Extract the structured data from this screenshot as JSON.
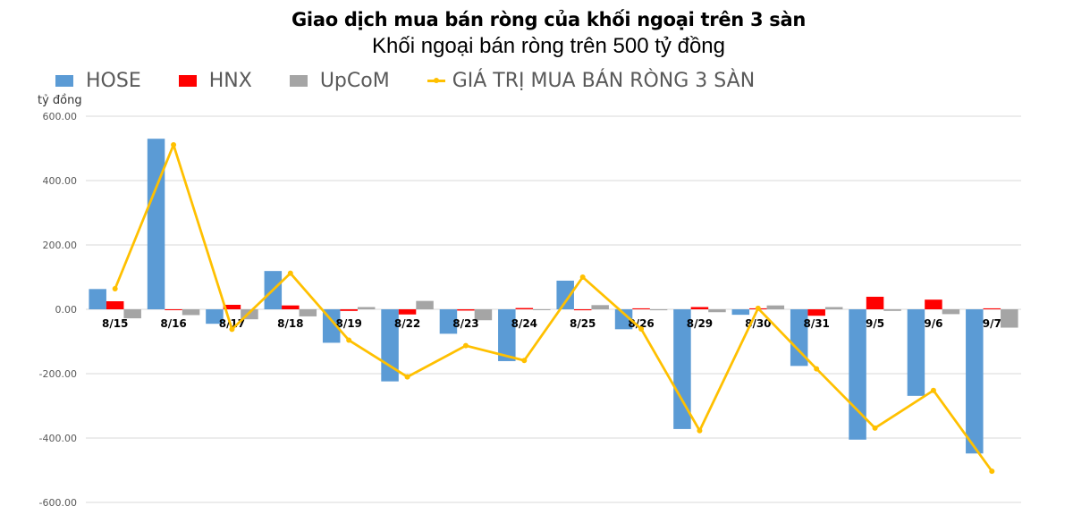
{
  "title": "Giao dịch mua bán ròng của khối ngoại trên 3 sàn",
  "subtitle": "Khối ngoại bán ròng trên 500 tỷ đồng",
  "y_unit": "tỷ đồng",
  "legend": [
    {
      "name": "HOSE",
      "type": "bar",
      "color": "#5B9BD5"
    },
    {
      "name": "HNX",
      "type": "bar",
      "color": "#FF0000"
    },
    {
      "name": "UpCoM",
      "type": "bar",
      "color": "#A5A5A5"
    },
    {
      "name": "GIÁ TRỊ MUA BÁN RÒNG 3 SÀN",
      "type": "line",
      "color": "#FFC000"
    }
  ],
  "chart_data": {
    "type": "bar",
    "title": "Giao dịch mua bán ròng của khối ngoại trên 3 sàn",
    "subtitle": "Khối ngoại bán ròng trên 500 tỷ đồng",
    "xlabel": "",
    "ylabel": "tỷ đồng",
    "ylim": [
      -600,
      600
    ],
    "yticks": [
      600,
      400,
      200,
      0,
      -200,
      -400,
      -600
    ],
    "ytick_labels": [
      "600.00",
      "400.00",
      "200.00",
      "0.00",
      "-200.00",
      "-400.00",
      "-600.00"
    ],
    "grid": true,
    "legend_position": "top",
    "categories": [
      "8/15",
      "8/16",
      "8/17",
      "8/18",
      "8/19",
      "8/22",
      "8/23",
      "8/24",
      "8/25",
      "8/26",
      "8/29",
      "8/30",
      "8/31",
      "9/5",
      "9/6",
      "9/7"
    ],
    "series": [
      {
        "name": "HOSE",
        "type": "bar",
        "color": "#5B9BD5",
        "values": [
          63,
          530,
          -45,
          119,
          -104,
          -224,
          -76,
          -161,
          89,
          -62,
          -372,
          -17,
          -176,
          -405,
          -269,
          -448
        ]
      },
      {
        "name": "HNX",
        "type": "bar",
        "color": "#FF0000",
        "values": [
          25,
          -2,
          14,
          12,
          -5,
          -16,
          -4,
          4,
          -3,
          3,
          7,
          3,
          -20,
          39,
          30,
          3
        ]
      },
      {
        "name": "UpCoM",
        "type": "bar",
        "color": "#A5A5A5",
        "values": [
          -28,
          -18,
          -31,
          -22,
          7,
          26,
          -34,
          -2,
          13,
          -3,
          -9,
          12,
          7,
          -5,
          -15,
          -57
        ]
      },
      {
        "name": "GIÁ TRỊ MUA BÁN RÒNG 3 SÀN",
        "type": "line",
        "color": "#FFC000",
        "values": [
          64,
          511,
          -62,
          112,
          -96,
          -210,
          -113,
          -159,
          100,
          -61,
          -377,
          3,
          -185,
          -369,
          -252,
          -503
        ]
      }
    ]
  }
}
